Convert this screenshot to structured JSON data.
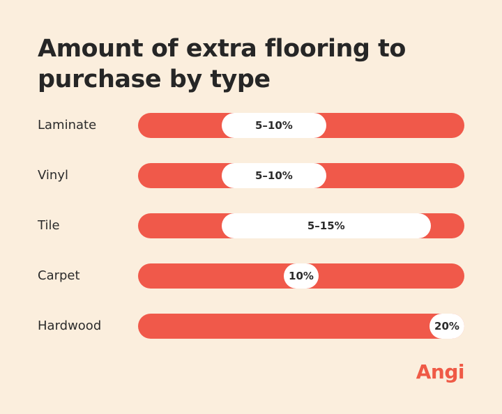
{
  "chart_data": {
    "type": "bar",
    "title": "Amount of extra flooring to purchase by type",
    "categories": [
      "Laminate",
      "Vinyl",
      "Tile",
      "Carpet",
      "Hardwood"
    ],
    "labels": [
      "5–10%",
      "5–10%",
      "5–15%",
      "10%",
      "20%"
    ],
    "ranges": [
      [
        5,
        10
      ],
      [
        5,
        10
      ],
      [
        5,
        15
      ],
      [
        10,
        10
      ],
      [
        20,
        20
      ]
    ],
    "xlim": [
      0,
      20
    ],
    "bar_color": "#f0594a",
    "marker_color": "#ffffff"
  },
  "brand": {
    "logo_text": "Angi",
    "color": "#ef5a46"
  },
  "background_color": "#fbeedd"
}
